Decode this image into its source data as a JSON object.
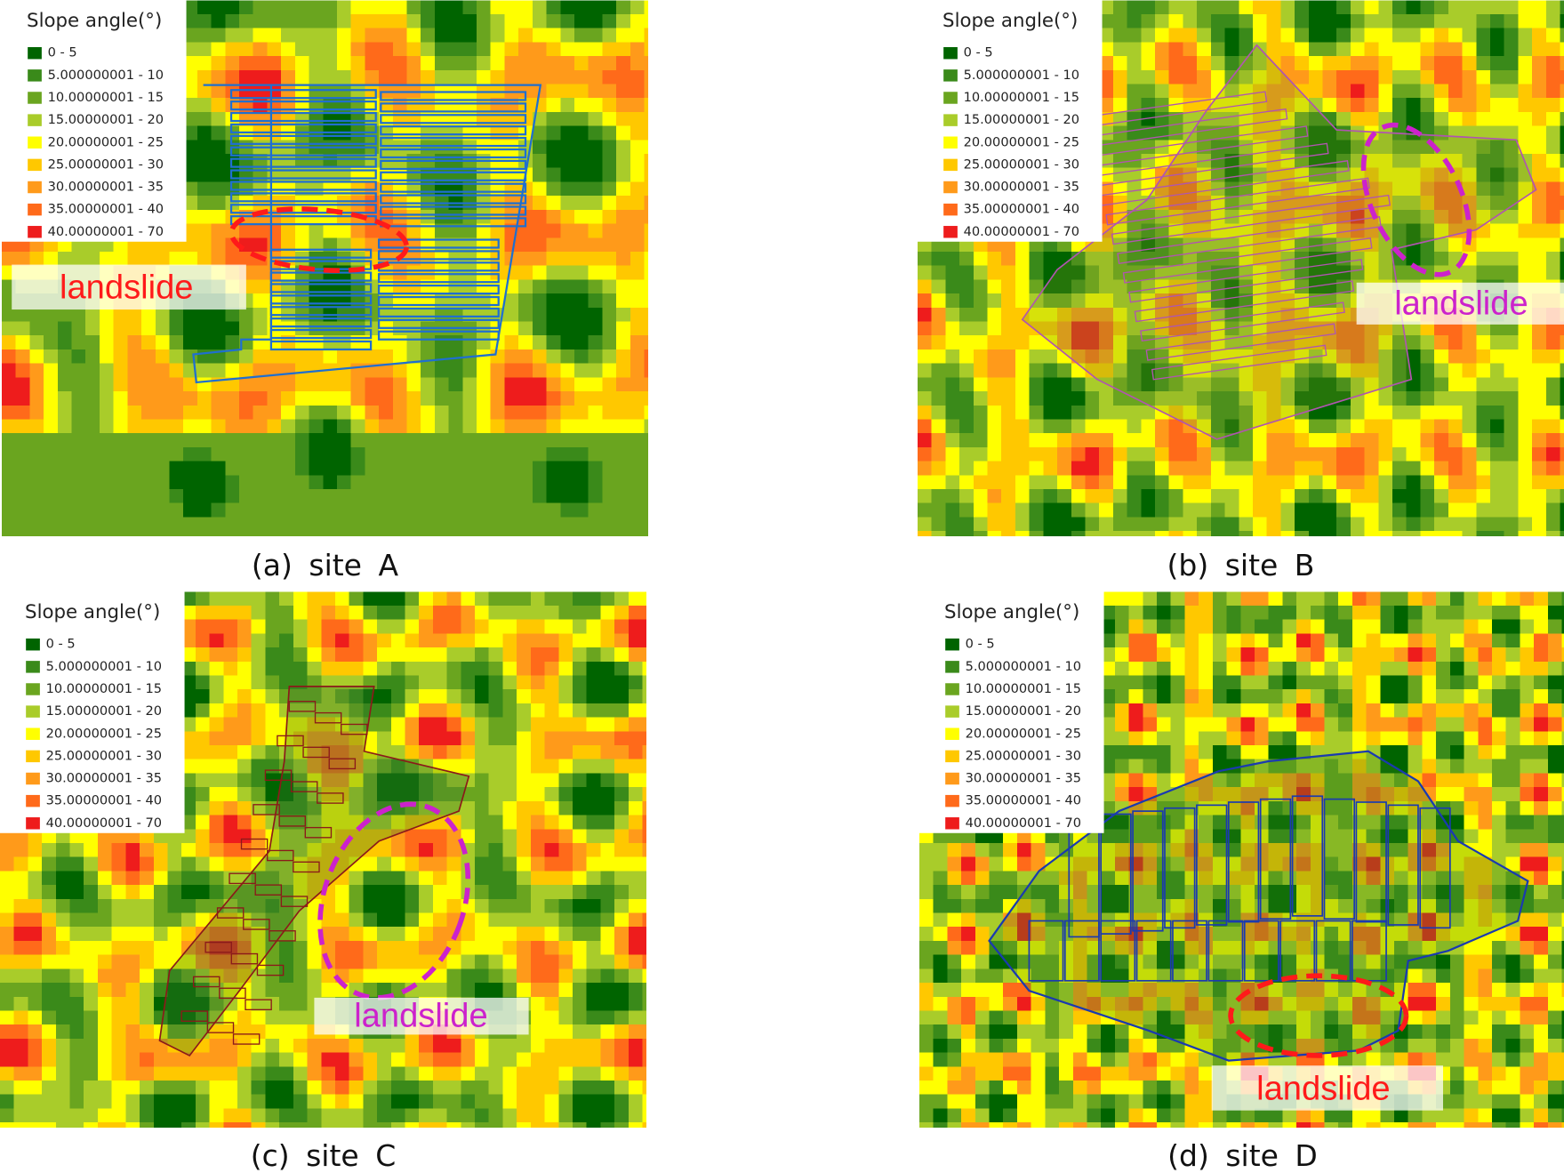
{
  "panels": [
    {
      "caption": "(a) site A",
      "annotation": "landslide",
      "annotation_color": "#ff1a1a",
      "legend": {
        "title": "Slope angle(°)",
        "items": [
          {
            "label": "0 - 5",
            "color": "#006400"
          },
          {
            "label": "5.000000001 - 10",
            "color": "#3a8a1a"
          },
          {
            "label": "10.00000001 - 15",
            "color": "#6aa51f"
          },
          {
            "label": "15.00000001 - 20",
            "color": "#a9cc2a"
          },
          {
            "label": "20.00000001 - 25",
            "color": "#ffff00"
          },
          {
            "label": "25.00000001 - 30",
            "color": "#ffc800"
          },
          {
            "label": "30.00000001 - 35",
            "color": "#ff9a1a"
          },
          {
            "label": "35.00000001 - 40",
            "color": "#ff6a1a"
          },
          {
            "label": "40.00000001 - 70",
            "color": "#ee1c1c"
          }
        ]
      }
    },
    {
      "caption": "(b) site B",
      "annotation": "landslide",
      "annotation_color": "#cc22cc",
      "legend": {
        "title": "Slope angle(°)",
        "items": [
          {
            "label": "0 - 5",
            "color": "#006400"
          },
          {
            "label": "5.000000001 - 10",
            "color": "#3a8a1a"
          },
          {
            "label": "10.00000001 - 15",
            "color": "#6aa51f"
          },
          {
            "label": "15.00000001 - 20",
            "color": "#a9cc2a"
          },
          {
            "label": "20.00000001 - 25",
            "color": "#ffff00"
          },
          {
            "label": "25.00000001 - 30",
            "color": "#ffc800"
          },
          {
            "label": "30.00000001 - 35",
            "color": "#ff9a1a"
          },
          {
            "label": "35.00000001 - 40",
            "color": "#ff6a1a"
          },
          {
            "label": "40.00000001 - 70",
            "color": "#ee1c1c"
          }
        ]
      }
    },
    {
      "caption": "(c) site C",
      "annotation": "landslide",
      "annotation_color": "#cc22cc",
      "legend": {
        "title": "Slope angle(°)",
        "items": [
          {
            "label": "0 - 5",
            "color": "#006400"
          },
          {
            "label": "5.000000001 - 10",
            "color": "#3a8a1a"
          },
          {
            "label": "10.00000001 - 15",
            "color": "#6aa51f"
          },
          {
            "label": "15.00000001 - 20",
            "color": "#a9cc2a"
          },
          {
            "label": "20.00000001 - 25",
            "color": "#ffff00"
          },
          {
            "label": "25.00000001 - 30",
            "color": "#ffc800"
          },
          {
            "label": "30.00000001 - 35",
            "color": "#ff9a1a"
          },
          {
            "label": "35.00000001 - 40",
            "color": "#ff6a1a"
          },
          {
            "label": "40.00000001 - 70",
            "color": "#ee1c1c"
          }
        ]
      }
    },
    {
      "caption": "(d) site D",
      "annotation": "landslide",
      "annotation_color": "#ff1a1a",
      "legend": {
        "title": "Slope angle(°)",
        "items": [
          {
            "label": "0 - 5",
            "color": "#006400"
          },
          {
            "label": "5.000000001 - 10",
            "color": "#3a8a1a"
          },
          {
            "label": "10.00000001 - 15",
            "color": "#6aa51f"
          },
          {
            "label": "15.00000001 - 20",
            "color": "#a9cc2a"
          },
          {
            "label": "20.00000001 - 25",
            "color": "#ffff00"
          },
          {
            "label": "25.00000001 - 30",
            "color": "#ffc800"
          },
          {
            "label": "30.00000001 - 35",
            "color": "#ff9a1a"
          },
          {
            "label": "35.00000001 - 40",
            "color": "#ff6a1a"
          },
          {
            "label": "40.00000001 - 70",
            "color": "#ee1c1c"
          }
        ]
      }
    }
  ]
}
